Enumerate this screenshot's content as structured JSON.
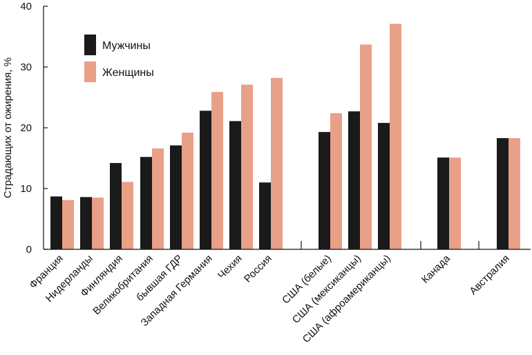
{
  "chart_data": {
    "type": "bar",
    "ylabel": "Страдающих от ожирения, %",
    "ylim": [
      0,
      40
    ],
    "yticks": [
      0,
      10,
      20,
      30,
      40
    ],
    "legend_position": "top-left",
    "colors": {
      "men": "#1a1a1a",
      "women": "#e8a088"
    },
    "series": [
      {
        "name": "Мужчины",
        "values": [
          8.7,
          8.6,
          14.2,
          15.2,
          17.1,
          22.8,
          21.1,
          11.0,
          19.3,
          22.7,
          20.8,
          15.1,
          18.3
        ]
      },
      {
        "name": "Женщины",
        "values": [
          8.1,
          8.5,
          11.1,
          16.6,
          19.2,
          25.9,
          27.1,
          28.2,
          22.4,
          33.7,
          37.1,
          15.1,
          18.3
        ]
      }
    ],
    "categories": [
      "Франция",
      "Нидерланды",
      "Финляндия",
      "Великобритания",
      "бывшая ГДР",
      "Западная Германия",
      "Чехия",
      "Россия",
      "США (белые)",
      "США (мексиканцы)",
      "США (афроамериканцы)",
      "Канада",
      "Австралия"
    ]
  }
}
